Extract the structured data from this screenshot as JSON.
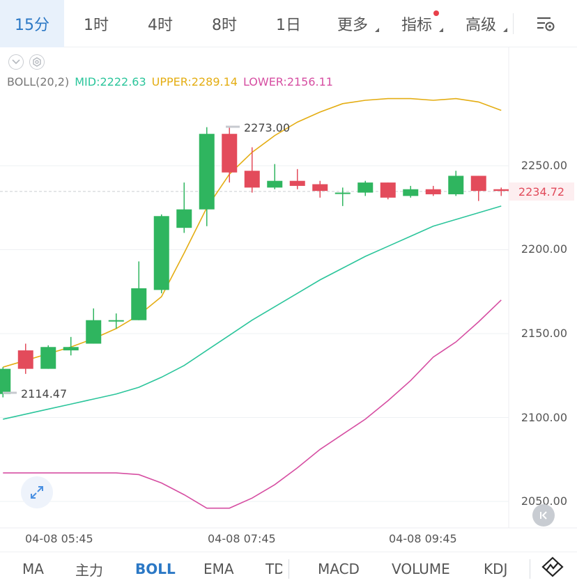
{
  "timeframes": {
    "items": [
      {
        "label": "15分",
        "active": true
      },
      {
        "label": "1时"
      },
      {
        "label": "4时"
      },
      {
        "label": "8时"
      },
      {
        "label": "1日"
      },
      {
        "label": "更多"
      },
      {
        "label": "指标"
      },
      {
        "label": "高级"
      }
    ],
    "settings_icon": "chart-settings-icon"
  },
  "legend": {
    "name": "BOLL(20,2)",
    "mid": "MID:2222.63",
    "upper": "UPPER:2289.14",
    "lower": "LOWER:2156.11"
  },
  "chart_data": {
    "type": "candlestick",
    "indicator": "BOLL(20,2)",
    "price_ticks": [
      2250,
      2200,
      2150,
      2100,
      2050
    ],
    "price_tick_labels": [
      "2250.00",
      "2200.00",
      "2150.00",
      "2100.00",
      "2050.00"
    ],
    "ylim": [
      2037,
      2299
    ],
    "last_price": "2234.72",
    "high_annotation": "2273.00",
    "low_annotation": "2114.47",
    "time_labels": [
      "04-08 05:45",
      "04-08 07:45",
      "04-08 09:45"
    ],
    "candles": [
      {
        "o": 2114,
        "h": 2130,
        "l": 2112,
        "c": 2129
      },
      {
        "o": 2140,
        "h": 2144,
        "l": 2126,
        "c": 2129
      },
      {
        "o": 2129,
        "h": 2143,
        "l": 2129,
        "c": 2142
      },
      {
        "o": 2140,
        "h": 2148,
        "l": 2137,
        "c": 2142
      },
      {
        "o": 2144,
        "h": 2165,
        "l": 2144,
        "c": 2158
      },
      {
        "o": 2158,
        "h": 2162,
        "l": 2153,
        "c": 2158
      },
      {
        "o": 2158,
        "h": 2193,
        "l": 2158,
        "c": 2177
      },
      {
        "o": 2176,
        "h": 2221,
        "l": 2174,
        "c": 2220
      },
      {
        "o": 2213,
        "h": 2240,
        "l": 2210,
        "c": 2224
      },
      {
        "o": 2224,
        "h": 2273,
        "l": 2214,
        "c": 2269
      },
      {
        "o": 2269,
        "h": 2273,
        "l": 2240,
        "c": 2246
      },
      {
        "o": 2247,
        "h": 2261,
        "l": 2234,
        "c": 2237
      },
      {
        "o": 2237,
        "h": 2251,
        "l": 2236,
        "c": 2241
      },
      {
        "o": 2241,
        "h": 2248,
        "l": 2236,
        "c": 2238
      },
      {
        "o": 2239,
        "h": 2241,
        "l": 2231,
        "c": 2235
      },
      {
        "o": 2234,
        "h": 2237,
        "l": 2226,
        "c": 2234
      },
      {
        "o": 2234,
        "h": 2241,
        "l": 2232,
        "c": 2240
      },
      {
        "o": 2240,
        "h": 2240,
        "l": 2230,
        "c": 2231
      },
      {
        "o": 2232,
        "h": 2238,
        "l": 2231,
        "c": 2236
      },
      {
        "o": 2236,
        "h": 2238,
        "l": 2232,
        "c": 2233
      },
      {
        "o": 2233,
        "h": 2247,
        "l": 2232,
        "c": 2244
      },
      {
        "o": 2244,
        "h": 2244,
        "l": 2229,
        "c": 2235
      },
      {
        "o": 2236,
        "h": 2237,
        "l": 2232,
        "c": 2235
      }
    ],
    "boll_upper": [
      2130,
      2134,
      2138,
      2142,
      2147,
      2153,
      2161,
      2172,
      2198,
      2225,
      2245,
      2258,
      2268,
      2276,
      2282,
      2287,
      2289,
      2290,
      2290,
      2289,
      2290,
      2288,
      2283
    ],
    "boll_mid": [
      2099,
      2102,
      2105,
      2108,
      2111,
      2114,
      2118,
      2124,
      2131,
      2140,
      2149,
      2158,
      2166,
      2174,
      2182,
      2189,
      2196,
      2202,
      2208,
      2214,
      2218,
      2222,
      2226
    ],
    "boll_lower": [
      2067,
      2067,
      2067,
      2067,
      2067,
      2067,
      2066,
      2061,
      2054,
      2046,
      2046,
      2052,
      2060,
      2070,
      2081,
      2090,
      2099,
      2110,
      2122,
      2136,
      2145,
      2157,
      2170
    ]
  },
  "colors": {
    "up": "#2fb55f",
    "down": "#e34b5b",
    "mid": "#2bc59b",
    "upper": "#e4ad12",
    "lower": "#d64ea2",
    "accent": "#2b78c5"
  },
  "controls": {
    "expand_icon": "expand-arrows-icon",
    "back_icon": "jump-to-latest-icon"
  },
  "indicators": {
    "items": [
      {
        "label": "MA"
      },
      {
        "label": "主力"
      },
      {
        "label": "BOLL",
        "active": true
      },
      {
        "label": "EMA"
      },
      {
        "label": "TD"
      },
      {
        "label": "MACD"
      },
      {
        "label": "VOLUME"
      },
      {
        "label": "KDJ"
      }
    ],
    "draw_icon": "drawing-tool-icon"
  }
}
